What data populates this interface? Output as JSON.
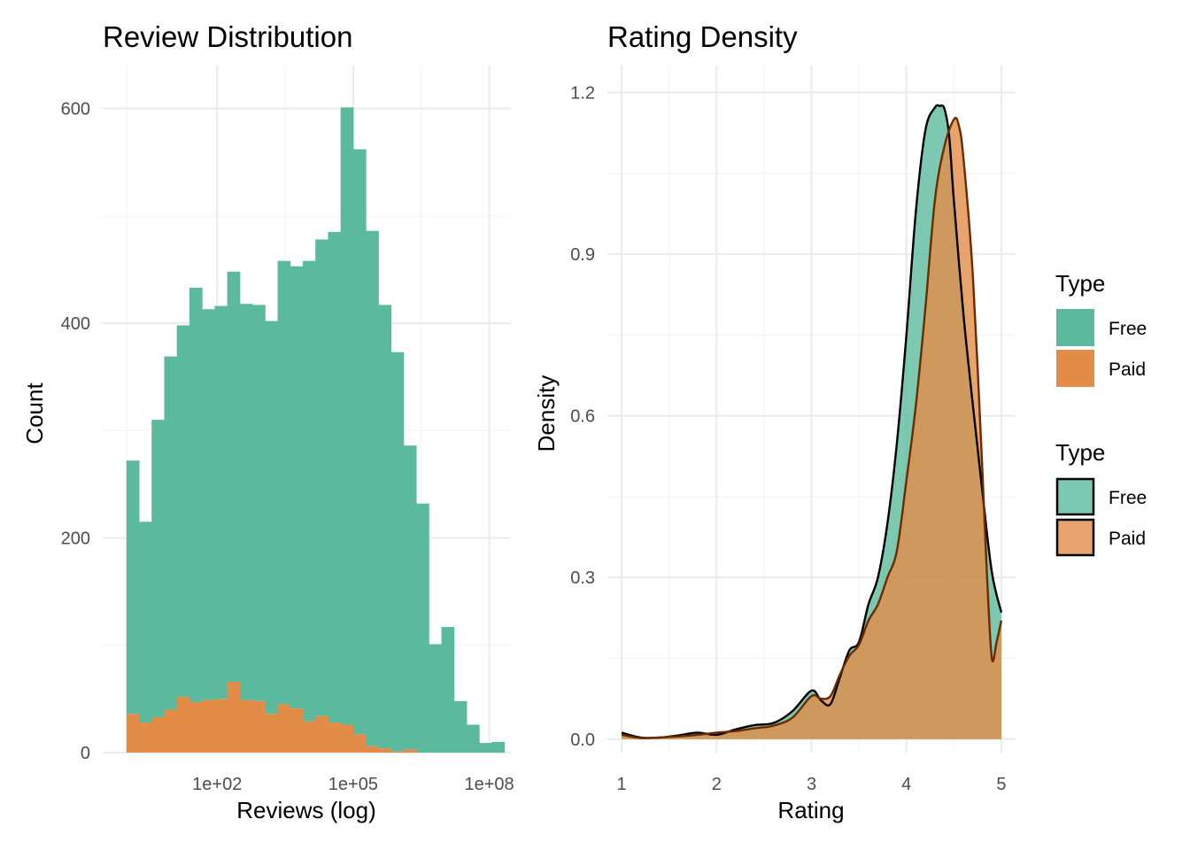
{
  "colors": {
    "free": "#5BBA9E",
    "paid": "#E38C48",
    "overlap": "#A8854A",
    "outline": "#000000"
  },
  "chart_data": [
    {
      "type": "histogram",
      "title": "Review Distribution",
      "xlabel": "Reviews (log)",
      "ylabel": "Count",
      "x_scale": "log10",
      "xlim": [
        0.3,
        300000000
      ],
      "ylim": [
        0,
        640
      ],
      "x_ticks": [
        {
          "value": 100,
          "label": "1e+02"
        },
        {
          "value": 100000,
          "label": "1e+05"
        },
        {
          "value": 100000000,
          "label": "1e+08"
        }
      ],
      "y_ticks": [
        0,
        200,
        400,
        600
      ],
      "y_minor_ticks": [
        100,
        300,
        500
      ],
      "x_minor_ticks": [
        1,
        3162,
        3162278
      ],
      "grid": true,
      "bin_edges_log10": [
        0.0,
        0.2778,
        0.5556,
        0.8333,
        1.1111,
        1.3889,
        1.6667,
        1.9444,
        2.2222,
        2.5,
        2.7778,
        3.0556,
        3.3333,
        3.6111,
        3.8889,
        4.1667,
        4.4444,
        4.7222,
        5.0,
        5.2778,
        5.5556,
        5.8333,
        6.1111,
        6.3889,
        6.6667,
        6.9444,
        7.2222,
        7.5,
        7.7778,
        8.0556
      ],
      "series": [
        {
          "name": "Free",
          "values": [
            236,
            187,
            277,
            329,
            346,
            386,
            364,
            366,
            382,
            369,
            369,
            366,
            413,
            412,
            429,
            444,
            457,
            575,
            545,
            480,
            413,
            372,
            283,
            232,
            101,
            117,
            48,
            26,
            9,
            10
          ]
        },
        {
          "name": "Paid",
          "values": [
            36,
            28,
            33,
            40,
            52,
            47,
            49,
            50,
            66,
            49,
            48,
            36,
            45,
            41,
            29,
            34,
            28,
            26,
            17,
            6,
            4,
            1,
            3,
            0,
            0,
            0,
            0,
            0,
            0,
            0
          ]
        }
      ]
    },
    {
      "type": "area",
      "title": "Rating Density",
      "xlabel": "Rating",
      "ylabel": "Density",
      "xlim": [
        0.85,
        5.15
      ],
      "ylim": [
        -0.025,
        1.25
      ],
      "x_ticks": [
        1,
        2,
        3,
        4,
        5
      ],
      "y_ticks": [
        {
          "value": 0.0,
          "label": "0.0"
        },
        {
          "value": 0.3,
          "label": "0.3"
        },
        {
          "value": 0.6,
          "label": "0.6"
        },
        {
          "value": 0.9,
          "label": "0.9"
        },
        {
          "value": 1.2,
          "label": "1.2"
        }
      ],
      "grid": true,
      "series": [
        {
          "name": "Free",
          "x": [
            1.0,
            1.2,
            1.4,
            1.6,
            1.8,
            2.0,
            2.2,
            2.4,
            2.6,
            2.8,
            3.0,
            3.1,
            3.2,
            3.3,
            3.4,
            3.5,
            3.6,
            3.7,
            3.8,
            3.9,
            4.0,
            4.1,
            4.2,
            4.3,
            4.35,
            4.4,
            4.45,
            4.5,
            4.6,
            4.7,
            4.8,
            4.9,
            5.0
          ],
          "y": [
            0.012,
            0.003,
            0.003,
            0.007,
            0.012,
            0.008,
            0.018,
            0.026,
            0.03,
            0.052,
            0.09,
            0.072,
            0.065,
            0.115,
            0.165,
            0.18,
            0.25,
            0.3,
            0.4,
            0.55,
            0.75,
            0.98,
            1.13,
            1.172,
            1.175,
            1.17,
            1.12,
            1.0,
            0.79,
            0.62,
            0.46,
            0.31,
            0.235
          ]
        },
        {
          "name": "Paid",
          "x": [
            1.0,
            1.2,
            1.4,
            1.6,
            1.8,
            2.0,
            2.2,
            2.4,
            2.6,
            2.8,
            3.0,
            3.1,
            3.2,
            3.3,
            3.4,
            3.5,
            3.6,
            3.7,
            3.8,
            3.9,
            4.0,
            4.1,
            4.2,
            4.3,
            4.4,
            4.5,
            4.55,
            4.6,
            4.7,
            4.8,
            4.85,
            4.9,
            4.95,
            5.0
          ],
          "y": [
            0.008,
            0.002,
            0.003,
            0.005,
            0.008,
            0.012,
            0.015,
            0.02,
            0.025,
            0.04,
            0.08,
            0.075,
            0.08,
            0.12,
            0.155,
            0.175,
            0.22,
            0.25,
            0.3,
            0.35,
            0.48,
            0.62,
            0.8,
            1.0,
            1.1,
            1.15,
            1.14,
            1.08,
            0.86,
            0.5,
            0.3,
            0.15,
            0.18,
            0.22
          ]
        }
      ]
    }
  ],
  "legend": {
    "fill_legend": {
      "title": "Type",
      "entries": [
        {
          "label": "Free"
        },
        {
          "label": "Paid"
        }
      ]
    },
    "outline_legend": {
      "title": "Type",
      "entries": [
        {
          "label": "Free"
        },
        {
          "label": "Paid"
        }
      ]
    }
  }
}
